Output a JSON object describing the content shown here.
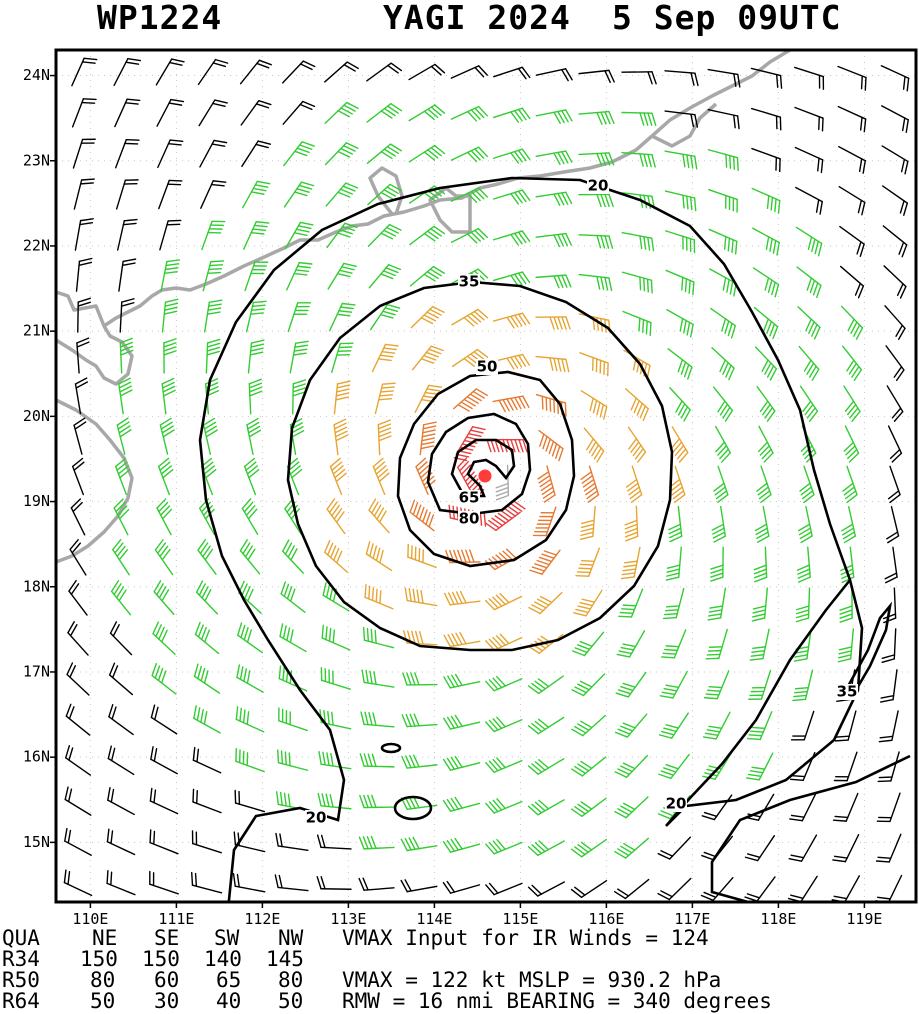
{
  "header": {
    "storm_id": "WP1224",
    "storm_name_year": "YAGI 2024",
    "datetime": "5 Sep 09UTC"
  },
  "map": {
    "lon_range": [
      109.6,
      119.6
    ],
    "lat_range": [
      14.3,
      24.3
    ],
    "lon_ticks": [
      "110E",
      "111E",
      "112E",
      "113E",
      "114E",
      "115E",
      "116E",
      "117E",
      "118E",
      "119E"
    ],
    "lat_ticks": [
      "24N",
      "23N",
      "22N",
      "21N",
      "20N",
      "19N",
      "18N",
      "17N",
      "16N",
      "15N"
    ],
    "grid": "dotted",
    "center": {
      "lon": 114.7,
      "lat": 19.3
    },
    "contour_labels": [
      "20",
      "35",
      "50",
      "65",
      "80",
      "35",
      "20",
      "20"
    ],
    "colors": {
      "coast": "#a8a8a8",
      "barb_calm": "#000000",
      "barb_34": "#33cc33",
      "barb_50": "#e6a533",
      "barb_64": "#e67a33",
      "barb_80": "#e64040",
      "barb_core": "#aaaaaa",
      "center_dot": "#ff3b3b",
      "contour": "#000000"
    }
  },
  "table": {
    "header": [
      "QUA",
      "NE",
      "SE",
      "SW",
      "NW"
    ],
    "rows": [
      {
        "label": "R34",
        "values": [
          "150",
          "150",
          "140",
          "145"
        ]
      },
      {
        "label": "R50",
        "values": [
          "80",
          "60",
          "65",
          "80"
        ]
      },
      {
        "label": "R64",
        "values": [
          "50",
          "30",
          "40",
          "50"
        ]
      }
    ],
    "info": [
      "VMAX Input for IR Winds =  124",
      "",
      "VMAX =  122 kt MSLP =  930.2 hPa",
      "RMW  =   16 nmi BEARING =  340 degrees"
    ]
  }
}
